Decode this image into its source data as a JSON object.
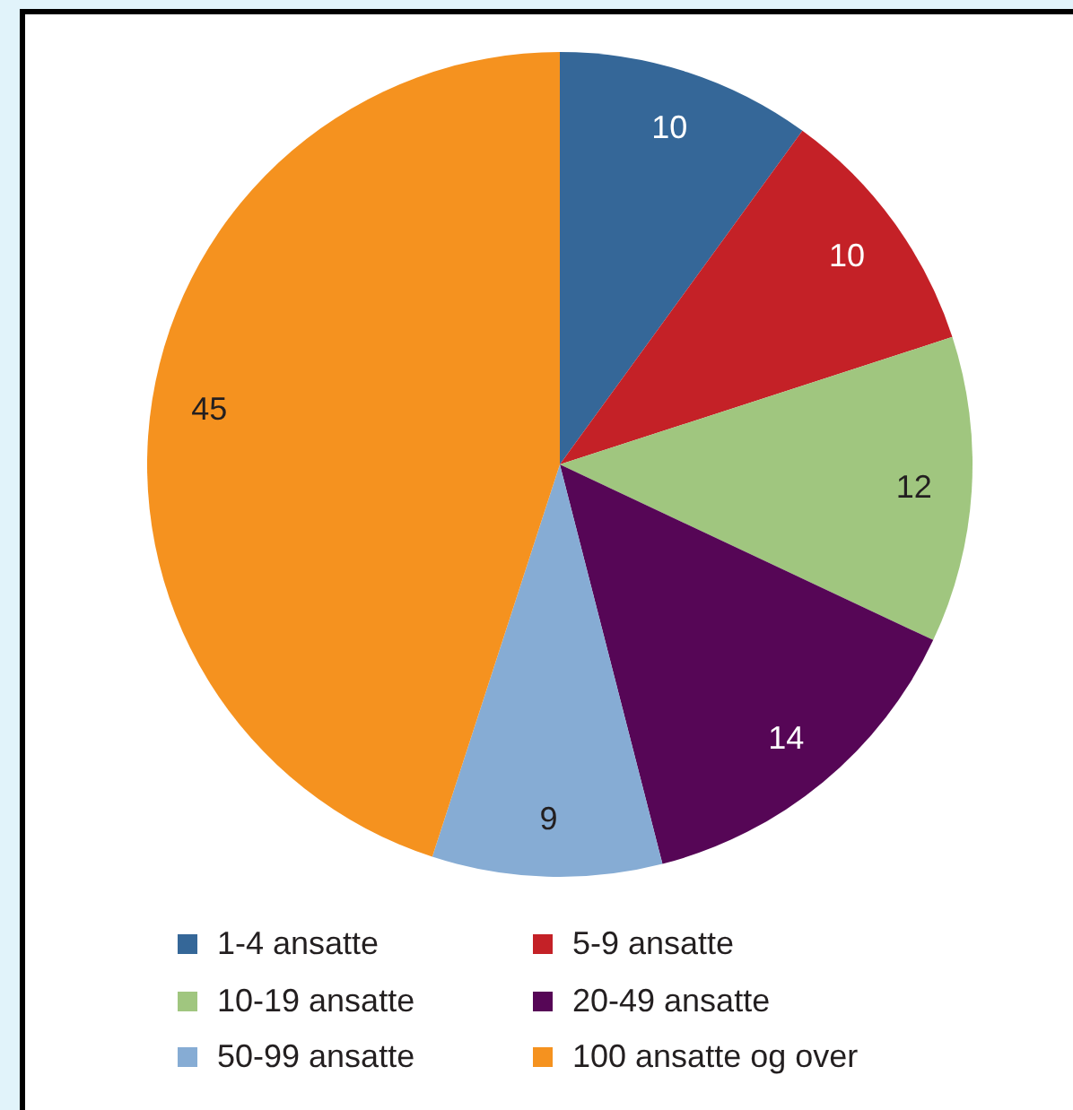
{
  "chart_data": {
    "type": "pie",
    "categories": [
      "1-4 ansatte",
      "5-9 ansatte",
      "10-19 ansatte",
      "20-49 ansatte",
      "50-99 ansatte",
      "100 ansatte og over"
    ],
    "values": [
      10,
      10,
      12,
      14,
      9,
      45
    ],
    "colors": [
      "#356798",
      "#c42127",
      "#a0c67f",
      "#560656",
      "#86acd4",
      "#f5921f"
    ],
    "data_labels": true,
    "legend": "bottom"
  }
}
